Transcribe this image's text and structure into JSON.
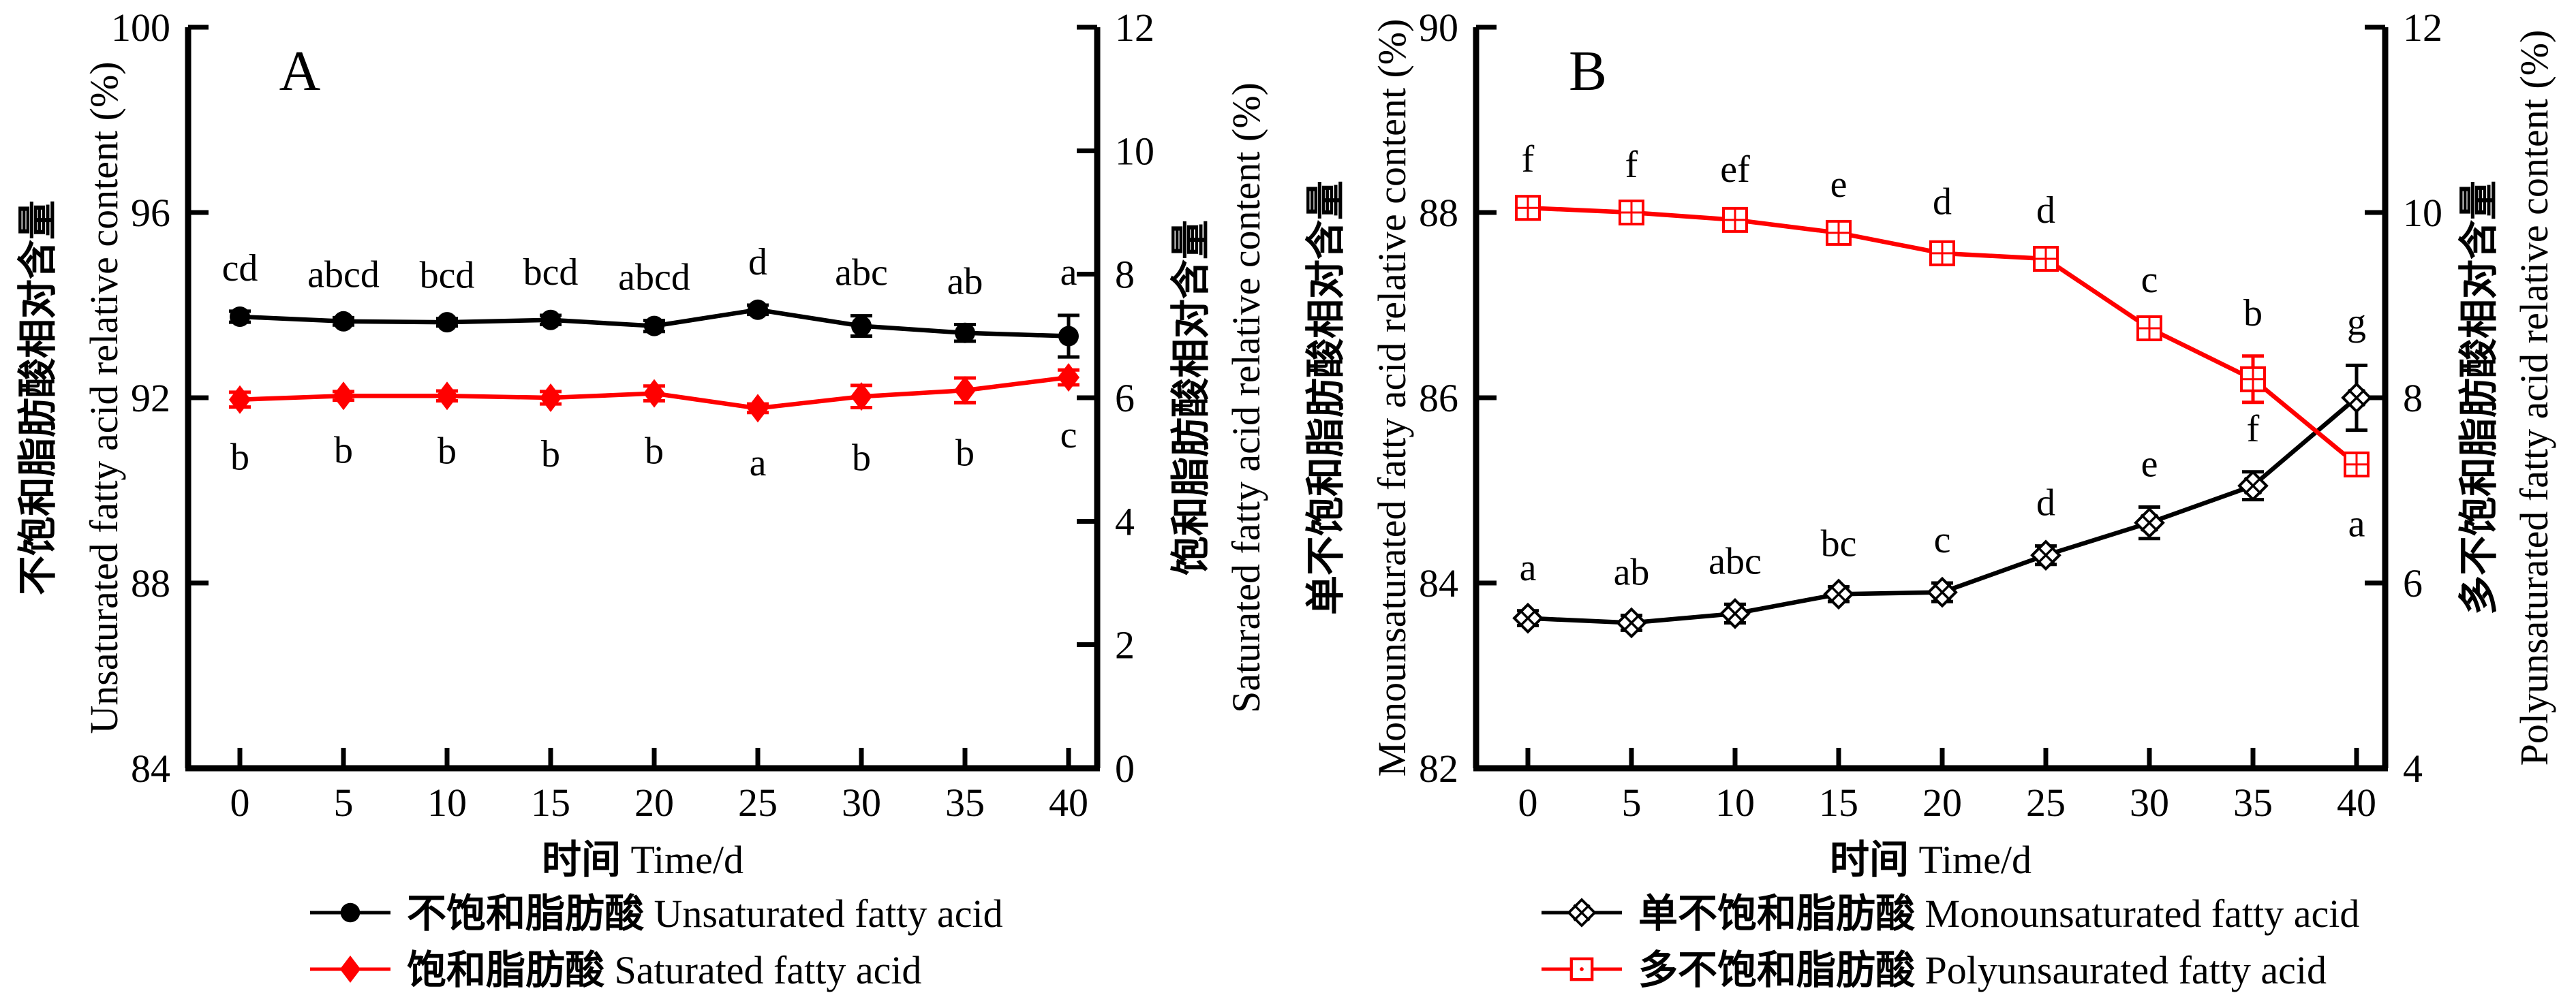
{
  "figure": {
    "background": "#ffffff",
    "colors": {
      "black": "#000000",
      "red": "#ff0000"
    }
  },
  "chart_data": [
    {
      "type": "line",
      "panel_label": "A",
      "x": [
        0,
        5,
        10,
        15,
        20,
        25,
        30,
        35,
        40
      ],
      "xlabel_cn": "时间",
      "xlabel_en": "Time/d",
      "left_axis": {
        "title_cn": "不饱和脂肪酸相对含量",
        "title_en": "Unsaturated fatty acid relative content (%)",
        "min": 84,
        "max": 100,
        "ticks": [
          84,
          88,
          92,
          96,
          100
        ]
      },
      "right_axis": {
        "title_cn": "饱和脂肪酸相对含量",
        "title_en": "Saturated fatty acid relative content (%)",
        "min": 0,
        "max": 12,
        "ticks": [
          0,
          2,
          4,
          6,
          8,
          10,
          12
        ]
      },
      "series": [
        {
          "key": "unsaturated",
          "name_cn": "不饱和脂肪酸",
          "name_en": "Unsaturated fatty acid",
          "color": "#000000",
          "axis": "left",
          "marker": "filled-circle",
          "values": [
            93.75,
            93.65,
            93.63,
            93.68,
            93.55,
            93.9,
            93.55,
            93.4,
            93.33
          ],
          "errors": [
            0.12,
            0.08,
            0.08,
            0.1,
            0.12,
            0.1,
            0.22,
            0.18,
            0.45
          ],
          "letters": [
            "cd",
            "abcd",
            "bcd",
            "bcd",
            "abcd",
            "d",
            "abc",
            "ab",
            "a"
          ],
          "letter_sides": [
            "above",
            "above",
            "above",
            "above",
            "above",
            "above",
            "above",
            "above",
            "above"
          ]
        },
        {
          "key": "saturated",
          "name_cn": "饱和脂肪酸",
          "name_en": "Saturated fatty acid",
          "color": "#ff0000",
          "axis": "right",
          "marker": "filled-diamond",
          "values": [
            5.97,
            6.03,
            6.03,
            6.0,
            6.07,
            5.83,
            6.02,
            6.12,
            6.33
          ],
          "errors": [
            0.12,
            0.07,
            0.08,
            0.1,
            0.12,
            0.07,
            0.18,
            0.2,
            0.12
          ],
          "letters": [
            "b",
            "b",
            "b",
            "b",
            "b",
            "a",
            "b",
            "b",
            "c"
          ],
          "letter_sides": [
            "below",
            "below",
            "below",
            "below",
            "below",
            "below",
            "below",
            "below",
            "below"
          ]
        }
      ]
    },
    {
      "type": "line",
      "panel_label": "B",
      "x": [
        0,
        5,
        10,
        15,
        20,
        25,
        30,
        35,
        40
      ],
      "xlabel_cn": "时间",
      "xlabel_en": "Time/d",
      "left_axis": {
        "title_cn": "单不饱和脂肪酸相对含量",
        "title_en": "Monounsaturated fatty acid relative content (%)",
        "min": 82,
        "max": 90,
        "ticks": [
          82,
          84,
          86,
          88,
          90
        ]
      },
      "right_axis": {
        "title_cn": "多不饱和脂肪酸相对含量",
        "title_en": "Polyunsaturated fatty acid relative content (%)",
        "min": 4,
        "max": 12,
        "ticks": [
          4,
          6,
          8,
          10,
          12
        ]
      },
      "series": [
        {
          "key": "monounsaturated",
          "name_cn": "单不饱和脂肪酸",
          "name_en": "Monounsaturated fatty acid",
          "color": "#000000",
          "axis": "left",
          "marker": "crossed-diamond",
          "values": [
            83.62,
            83.57,
            83.67,
            83.88,
            83.9,
            84.3,
            84.65,
            85.05,
            86.0
          ],
          "errors": [
            0.08,
            0.08,
            0.1,
            0.08,
            0.1,
            0.1,
            0.17,
            0.15,
            0.35
          ],
          "letters": [
            "a",
            "ab",
            "abc",
            "bc",
            "c",
            "d",
            "e",
            "f",
            "g"
          ],
          "letter_sides": [
            "above",
            "above",
            "above",
            "above",
            "above",
            "above",
            "above",
            "above",
            "above"
          ]
        },
        {
          "key": "polyunsaturated",
          "name_cn": "多不饱和脂肪酸",
          "name_en": "Polyunsaurated fatty acid",
          "color": "#ff0000",
          "axis": "right",
          "marker": "plus-square",
          "values": [
            10.05,
            10.0,
            9.92,
            9.78,
            9.56,
            9.5,
            8.75,
            8.2,
            7.28
          ],
          "errors": [
            0.06,
            0.05,
            0.08,
            0.06,
            0.09,
            0.06,
            0.06,
            0.25,
            0.1
          ],
          "letters": [
            "f",
            "f",
            "ef",
            "e",
            "d",
            "d",
            "c",
            "b",
            "a"
          ],
          "letter_sides": [
            "above",
            "above",
            "above",
            "above",
            "above",
            "above",
            "above",
            "above",
            "below"
          ]
        }
      ]
    }
  ]
}
